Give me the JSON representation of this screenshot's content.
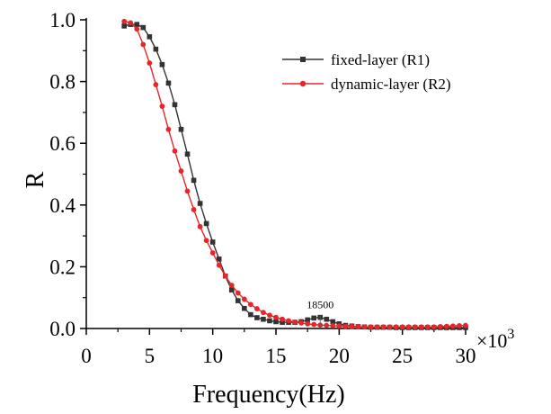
{
  "chart_data": {
    "type": "line",
    "xlabel": "Frequency(Hz)",
    "ylabel": "R",
    "x_multiplier_label": "×10",
    "x_multiplier_exponent": "3",
    "xlim": [
      0,
      30
    ],
    "ylim": [
      0,
      1.0
    ],
    "xticks": [
      0,
      5,
      10,
      15,
      20,
      25,
      30
    ],
    "yticks": [
      0.0,
      0.2,
      0.4,
      0.6,
      0.8,
      1.0
    ],
    "xtick_labels": [
      "0",
      "5",
      "10",
      "15",
      "20",
      "25",
      "30"
    ],
    "ytick_labels": [
      "0.0",
      "0.2",
      "0.4",
      "0.6",
      "0.8",
      "1.0"
    ],
    "legend_position": "top-right",
    "grid": false,
    "annotations": [
      {
        "text": "18500",
        "x": 18.5,
        "y": 0.036
      }
    ],
    "series": [
      {
        "name": "fixed-layer (R1)",
        "color": "#333333",
        "marker": "square",
        "x": [
          3.0,
          3.5,
          4.0,
          4.5,
          5.0,
          5.5,
          6.0,
          6.5,
          7.0,
          7.5,
          8.0,
          8.5,
          9.0,
          9.5,
          10.0,
          10.5,
          11.0,
          11.5,
          12.0,
          12.5,
          13.0,
          13.5,
          14.0,
          14.5,
          15.0,
          15.5,
          16.0,
          16.5,
          17.0,
          17.5,
          18.0,
          18.5,
          19.0,
          19.5,
          20.0,
          20.5,
          21.0,
          21.5,
          22.0,
          22.5,
          23.0,
          23.5,
          24.0,
          24.5,
          25.0,
          25.5,
          26.0,
          26.5,
          27.0,
          27.5,
          28.0,
          28.5,
          29.0,
          29.5,
          30.0
        ],
        "y": [
          0.98,
          0.985,
          0.985,
          0.975,
          0.945,
          0.905,
          0.855,
          0.795,
          0.725,
          0.645,
          0.565,
          0.48,
          0.405,
          0.34,
          0.28,
          0.225,
          0.17,
          0.125,
          0.09,
          0.065,
          0.045,
          0.035,
          0.03,
          0.025,
          0.022,
          0.02,
          0.02,
          0.02,
          0.022,
          0.028,
          0.034,
          0.036,
          0.03,
          0.022,
          0.015,
          0.01,
          0.008,
          0.006,
          0.005,
          0.004,
          0.004,
          0.004,
          0.004,
          0.003,
          0.003,
          0.003,
          0.003,
          0.003,
          0.003,
          0.003,
          0.003,
          0.003,
          0.003,
          0.003,
          0.003
        ]
      },
      {
        "name": "dynamic-layer (R2)",
        "color": "#e8262a",
        "marker": "circle",
        "x": [
          3.0,
          3.5,
          4.0,
          4.5,
          5.0,
          5.5,
          6.0,
          6.5,
          7.0,
          7.5,
          8.0,
          8.5,
          9.0,
          9.5,
          10.0,
          10.5,
          11.0,
          11.5,
          12.0,
          12.5,
          13.0,
          13.5,
          14.0,
          14.5,
          15.0,
          15.5,
          16.0,
          16.5,
          17.0,
          17.5,
          18.0,
          18.5,
          19.0,
          19.5,
          20.0,
          20.5,
          21.0,
          21.5,
          22.0,
          22.5,
          23.0,
          23.5,
          24.0,
          24.5,
          25.0,
          25.5,
          26.0,
          26.5,
          27.0,
          27.5,
          28.0,
          28.5,
          29.0,
          29.5,
          30.0
        ],
        "y": [
          0.995,
          0.99,
          0.97,
          0.92,
          0.86,
          0.79,
          0.72,
          0.645,
          0.575,
          0.51,
          0.445,
          0.385,
          0.33,
          0.285,
          0.245,
          0.205,
          0.17,
          0.14,
          0.115,
          0.095,
          0.078,
          0.064,
          0.052,
          0.043,
          0.036,
          0.03,
          0.025,
          0.021,
          0.018,
          0.015,
          0.013,
          0.011,
          0.01,
          0.009,
          0.008,
          0.007,
          0.006,
          0.006,
          0.005,
          0.005,
          0.005,
          0.005,
          0.005,
          0.005,
          0.005,
          0.005,
          0.005,
          0.005,
          0.005,
          0.005,
          0.006,
          0.007,
          0.008,
          0.009,
          0.01
        ]
      }
    ]
  }
}
